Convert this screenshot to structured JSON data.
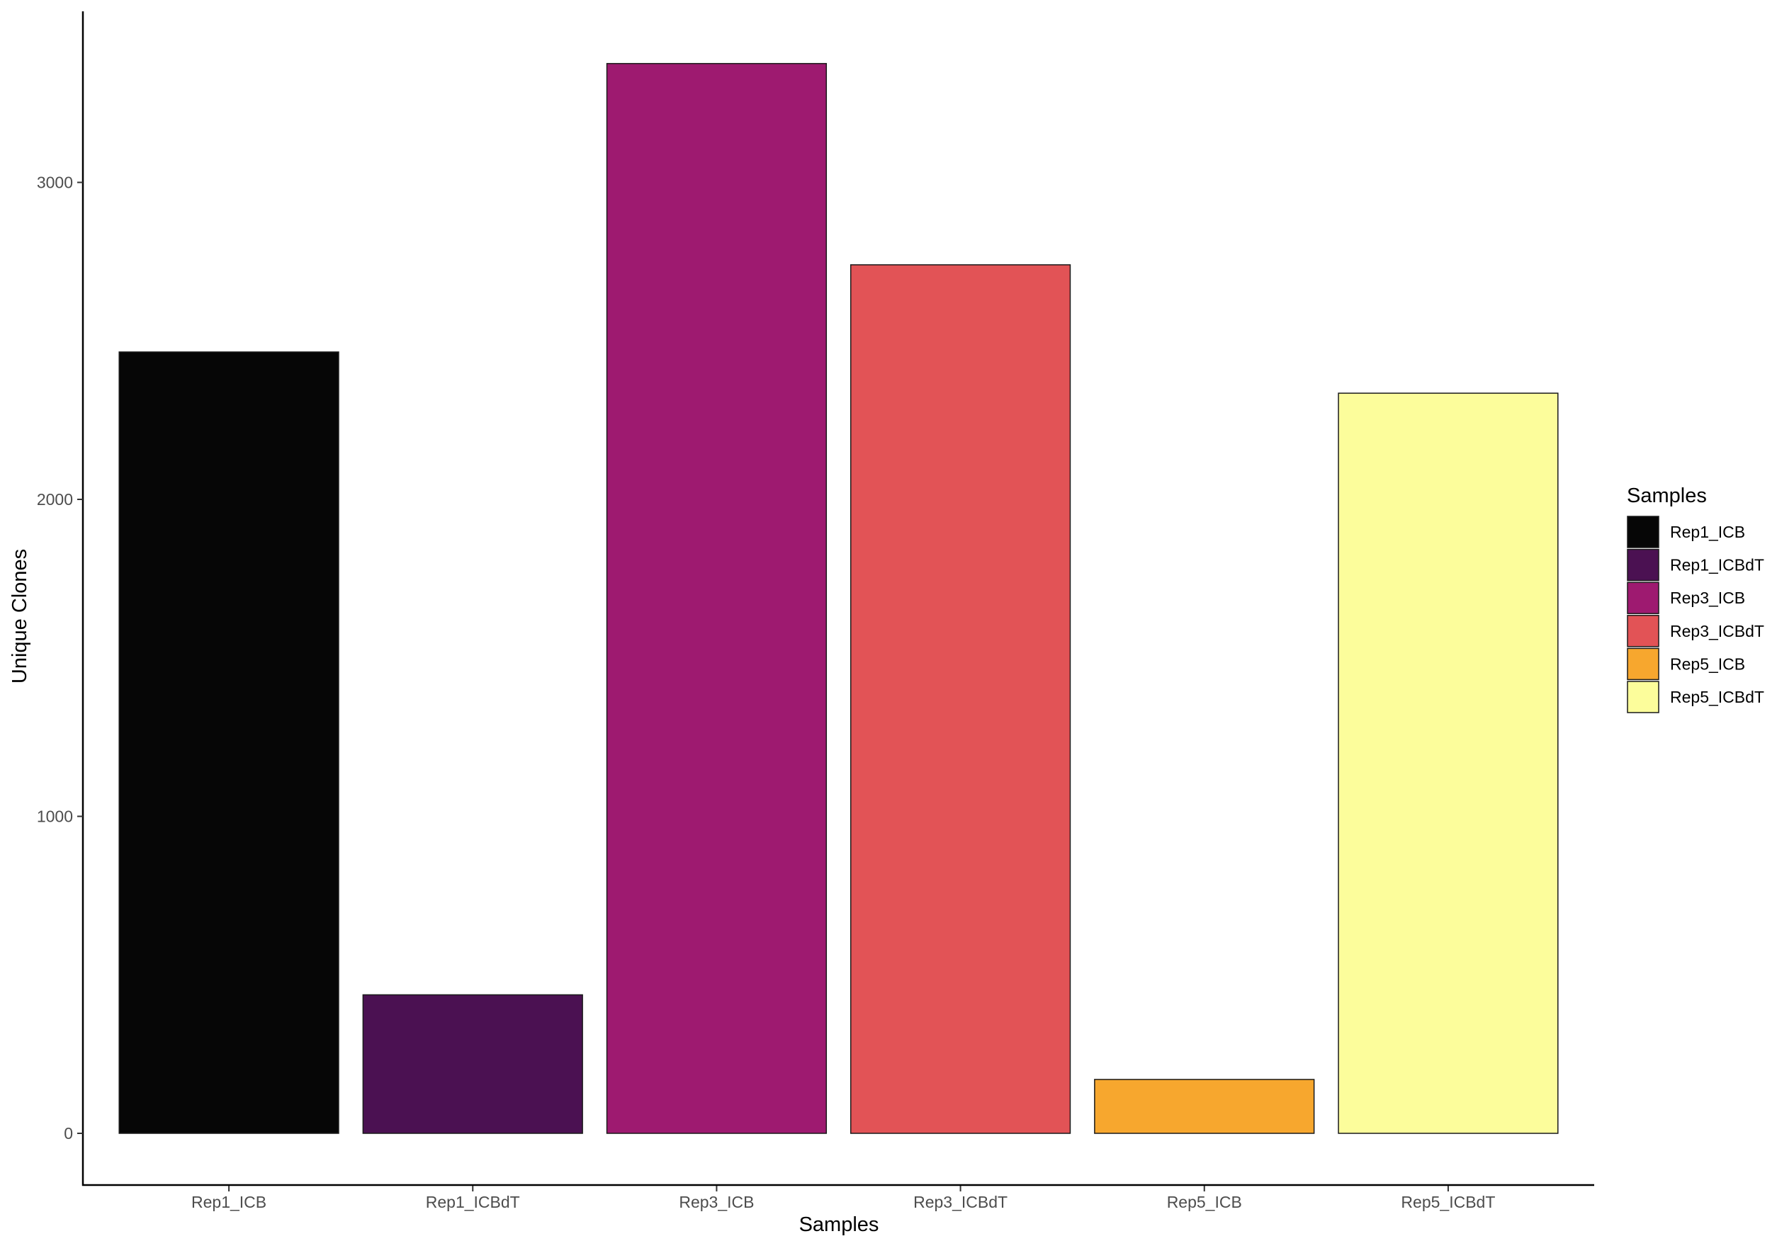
{
  "chart_data": {
    "type": "bar",
    "title": "",
    "xlabel": "Samples",
    "ylabel": "Unique Clones",
    "categories": [
      "Rep1_ICB",
      "Rep1_ICBdT",
      "Rep3_ICB",
      "Rep3_ICBdT",
      "Rep5_ICB",
      "Rep5_ICBdT"
    ],
    "values": [
      2465,
      437,
      3375,
      2740,
      170,
      2335
    ],
    "colors": [
      "#060606",
      "#4b1152",
      "#9e1a70",
      "#e25356",
      "#f7a72e",
      "#fcfd9b"
    ],
    "ylim": [
      -170,
      3540
    ],
    "yticks": [
      0,
      1000,
      2000,
      3000
    ],
    "grid": false,
    "legend": {
      "title": "Samples",
      "placement": "right",
      "entries": [
        "Rep1_ICB",
        "Rep1_ICBdT",
        "Rep3_ICB",
        "Rep3_ICBdT",
        "Rep5_ICB",
        "Rep5_ICBdT"
      ]
    }
  }
}
